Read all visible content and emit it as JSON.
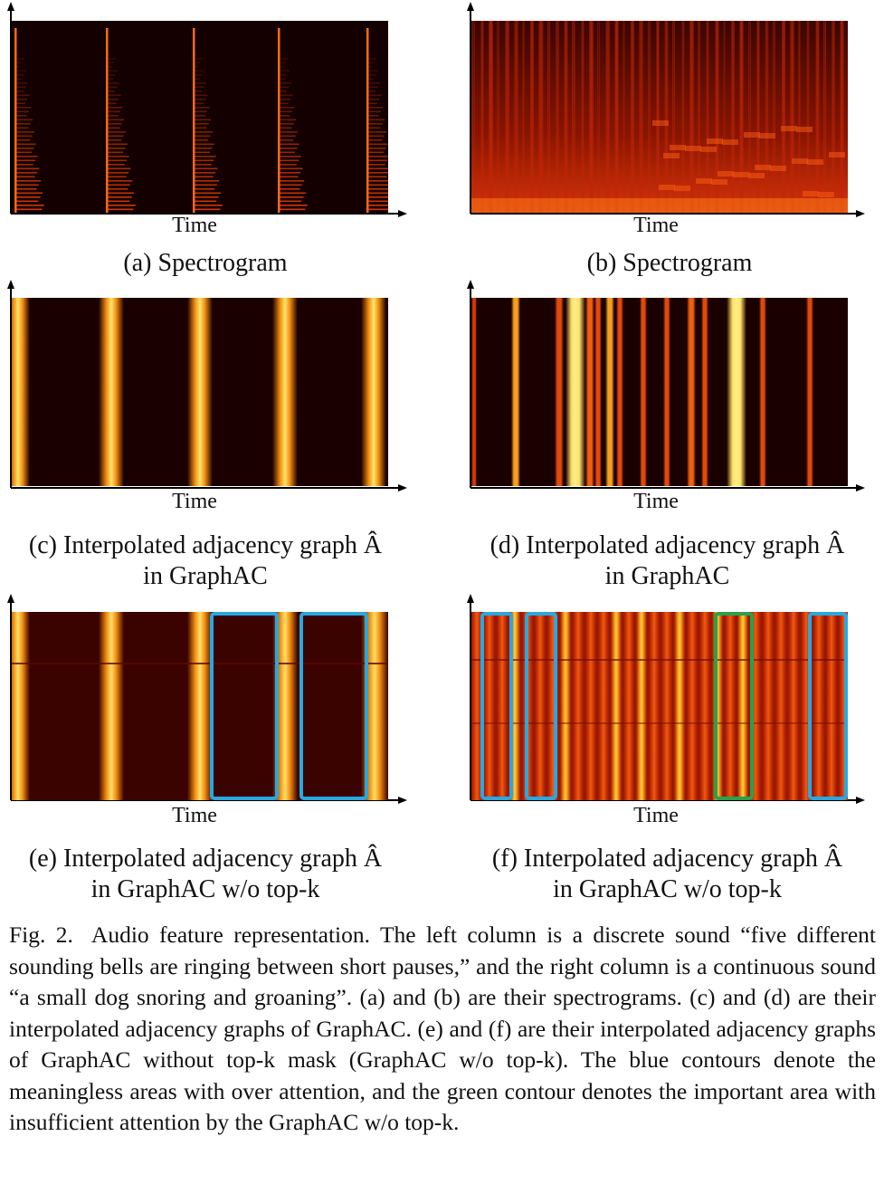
{
  "panels": {
    "a": {
      "xlabel": "Time",
      "caption": "(a) Spectrogram"
    },
    "b": {
      "xlabel": "Time",
      "caption": "(b) Spectrogram"
    },
    "c": {
      "xlabel": "Time",
      "caption_line1": "(c) Interpolated adjacency graph Â",
      "caption_line2": "in GraphAC"
    },
    "d": {
      "xlabel": "Time",
      "caption_line1": "(d) Interpolated adjacency graph Â",
      "caption_line2": "in GraphAC"
    },
    "e": {
      "xlabel": "Time",
      "caption_line1": "(e) Interpolated adjacency graph Â",
      "caption_line2": "in GraphAC w/o top-k"
    },
    "f": {
      "xlabel": "Time",
      "caption_line1": "(f) Interpolated adjacency graph Â",
      "caption_line2": "in GraphAC w/o top-k"
    }
  },
  "figure_caption": {
    "label": "Fig. 2.",
    "text": "Audio feature representation. The left column is a discrete sound “five different sounding bells are ringing between short pauses,” and the right column is a continuous sound “a small dog snoring and groaning”. (a) and (b) are their spectrograms. (c) and (d) are their interpolated adjacency graphs of GraphAC. (e) and (f) are their interpolated adjacency graphs of GraphAC without top-k mask (GraphAC w/o top-k). The blue contours denote the meaningless areas with over attention, and the green contour denotes the important area with insufficient attention by the GraphAC w/o top-k."
  },
  "colors": {
    "background": "#1a0000",
    "hot": "#ffd24a",
    "mid": "#e8420a",
    "blue_contour": "#29a8e0",
    "green_contour": "#2aa14a"
  }
}
